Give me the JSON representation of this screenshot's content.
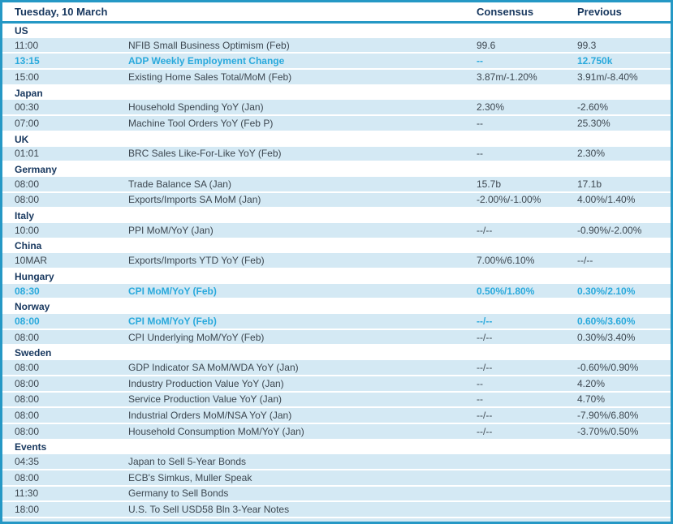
{
  "header": {
    "title": "Tuesday, 10 March",
    "consensus_label": "Consensus",
    "previous_label": "Previous"
  },
  "colors": {
    "accent_border": "#2598c5",
    "header_text_navy": "#17375e",
    "row_background_blue": "#d4e9f4",
    "highlight_cyan": "#29a9dc",
    "body_text": "#3d4750",
    "section_row_background": "#ffffff"
  },
  "sections": [
    {
      "name": "US",
      "rows": [
        {
          "time": "11:00",
          "event": "NFIB Small Business Optimism (Feb)",
          "consensus": "99.6",
          "previous": "99.3",
          "highlight": false
        },
        {
          "time": "13:15",
          "event": "ADP Weekly Employment Change",
          "consensus": "--",
          "previous": "12.750k",
          "highlight": true
        },
        {
          "time": "15:00",
          "event": "Existing Home Sales Total/MoM (Feb)",
          "consensus": "3.87m/-1.20%",
          "previous": "3.91m/-8.40%",
          "highlight": false
        }
      ]
    },
    {
      "name": "Japan",
      "rows": [
        {
          "time": "00:30",
          "event": "Household Spending YoY (Jan)",
          "consensus": "2.30%",
          "previous": "-2.60%",
          "highlight": false
        },
        {
          "time": "07:00",
          "event": "Machine Tool Orders YoY (Feb P)",
          "consensus": "--",
          "previous": "25.30%",
          "highlight": false
        }
      ]
    },
    {
      "name": "UK",
      "rows": [
        {
          "time": "01:01",
          "event": "BRC Sales Like-For-Like YoY (Feb)",
          "consensus": "--",
          "previous": "2.30%",
          "highlight": false
        }
      ]
    },
    {
      "name": "Germany",
      "rows": [
        {
          "time": "08:00",
          "event": "Trade Balance SA (Jan)",
          "consensus": "15.7b",
          "previous": "17.1b",
          "highlight": false
        },
        {
          "time": "08:00",
          "event": "Exports/Imports SA MoM (Jan)",
          "consensus": "-2.00%/-1.00%",
          "previous": "4.00%/1.40%",
          "highlight": false
        }
      ]
    },
    {
      "name": "Italy",
      "rows": [
        {
          "time": "10:00",
          "event": "PPI MoM/YoY (Jan)",
          "consensus": "--/--",
          "previous": "-0.90%/-2.00%",
          "highlight": false
        }
      ]
    },
    {
      "name": "China",
      "rows": [
        {
          "time": "10MAR",
          "event": "Exports/Imports YTD YoY (Feb)",
          "consensus": "7.00%/6.10%",
          "previous": "--/--",
          "highlight": false
        }
      ]
    },
    {
      "name": "Hungary",
      "rows": [
        {
          "time": "08:30",
          "event": "CPI MoM/YoY (Feb)",
          "consensus": "0.50%/1.80%",
          "previous": "0.30%/2.10%",
          "highlight": true
        }
      ]
    },
    {
      "name": "Norway",
      "rows": [
        {
          "time": "08:00",
          "event": "CPI MoM/YoY (Feb)",
          "consensus": "--/--",
          "previous": "0.60%/3.60%",
          "highlight": true
        },
        {
          "time": "08:00",
          "event": "CPI Underlying MoM/YoY (Feb)",
          "consensus": "--/--",
          "previous": "0.30%/3.40%",
          "highlight": false
        }
      ]
    },
    {
      "name": "Sweden",
      "rows": [
        {
          "time": "08:00",
          "event": "GDP Indicator SA MoM/WDA YoY (Jan)",
          "consensus": "--/--",
          "previous": "-0.60%/0.90%",
          "highlight": false
        },
        {
          "time": "08:00",
          "event": "Industry Production Value YoY (Jan)",
          "consensus": "--",
          "previous": "4.20%",
          "highlight": false
        },
        {
          "time": "08:00",
          "event": "Service Production Value YoY (Jan)",
          "consensus": "--",
          "previous": "4.70%",
          "highlight": false
        },
        {
          "time": "08:00",
          "event": "Industrial Orders MoM/NSA YoY (Jan)",
          "consensus": "--/--",
          "previous": "-7.90%/6.80%",
          "highlight": false
        },
        {
          "time": "08:00",
          "event": "Household Consumption MoM/YoY (Jan)",
          "consensus": "--/--",
          "previous": "-3.70%/0.50%",
          "highlight": false
        }
      ]
    },
    {
      "name": "Events",
      "rows": [
        {
          "time": "04:35",
          "event": "Japan to Sell 5-Year Bonds",
          "consensus": "",
          "previous": "",
          "highlight": false
        },
        {
          "time": "08:00",
          "event": "ECB's Simkus, Muller Speak",
          "consensus": "",
          "previous": "",
          "highlight": false
        },
        {
          "time": "11:30",
          "event": "Germany to Sell Bonds",
          "consensus": "",
          "previous": "",
          "highlight": false
        },
        {
          "time": "18:00",
          "event": "U.S. To Sell USD58 Bln 3-Year Notes",
          "consensus": "",
          "previous": "",
          "highlight": false
        }
      ]
    }
  ]
}
